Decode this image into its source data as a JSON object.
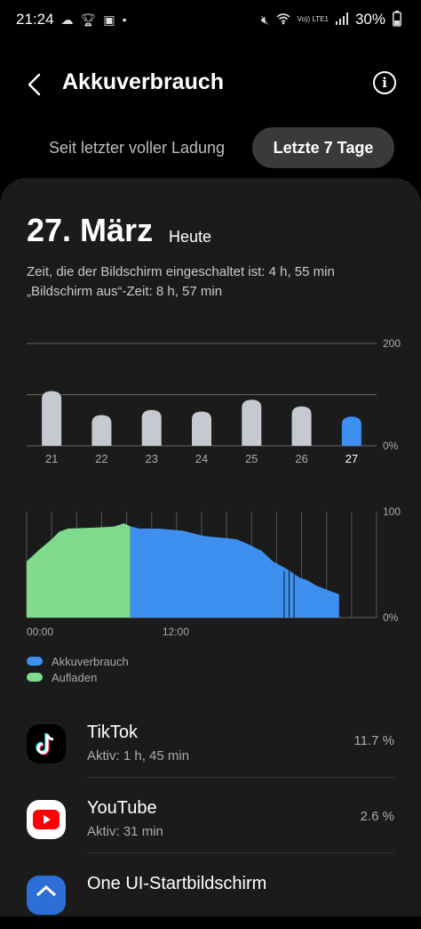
{
  "status_bar": {
    "time": "21:24",
    "battery": "30%",
    "volte": "Vo)) LTE1",
    "left_icons": [
      "cloud-icon",
      "trophy-icon",
      "image-icon",
      "dot-icon"
    ],
    "right_icons": [
      "mute-icon",
      "wifi-icon",
      "signal-icon",
      "battery-icon"
    ]
  },
  "header": {
    "title": "Akkuverbrauch"
  },
  "tabs": {
    "inactive": "Seit letzter voller Ladung",
    "active": "Letzte 7 Tage"
  },
  "summary": {
    "date": "27. März",
    "date_suffix": "Heute",
    "screen_on": "Zeit, die der Bildschirm eingeschaltet ist: 4 h, 55 min",
    "screen_off": "„Bildschirm aus“-Zeit: 8 h, 57 min"
  },
  "chart_data": [
    {
      "type": "bar",
      "categories": [
        "21",
        "22",
        "23",
        "24",
        "25",
        "26",
        "27"
      ],
      "values": [
        107,
        60,
        70,
        67,
        90,
        77,
        57
      ],
      "selected": "27",
      "ylim": [
        0,
        200
      ],
      "ytick_labels": [
        "200",
        "0%"
      ],
      "gridlines": [
        0,
        100,
        200
      ],
      "colors": {
        "bar": "#c7c9d1",
        "selected": "#3d8ff0"
      }
    },
    {
      "type": "area",
      "xtick_labels": [
        "00:00",
        "12:00"
      ],
      "ylim": [
        0,
        100
      ],
      "ytick_labels": [
        "100",
        "0%"
      ],
      "series": [
        {
          "name": "Aufladen",
          "color": "#7fdb8b",
          "points": [
            [
              0.0,
              53
            ],
            [
              1.0,
              64
            ],
            [
              2.0,
              74
            ],
            [
              2.6,
              81
            ],
            [
              3.3,
              84
            ],
            [
              5.5,
              85
            ],
            [
              7.0,
              86
            ],
            [
              7.8,
              89
            ],
            [
              8.3,
              86
            ]
          ]
        },
        {
          "name": "Akkuverbrauch",
          "color": "#3d8ff0",
          "points": [
            [
              8.3,
              86
            ],
            [
              9.0,
              84
            ],
            [
              10.5,
              84
            ],
            [
              12.5,
              82
            ],
            [
              13.5,
              79
            ],
            [
              14.2,
              77
            ],
            [
              15.0,
              76
            ],
            [
              16.0,
              75
            ],
            [
              16.8,
              74
            ],
            [
              17.6,
              70
            ],
            [
              18.8,
              63
            ],
            [
              19.7,
              53
            ],
            [
              20.5,
              48
            ],
            [
              21.2,
              43
            ],
            [
              21.8,
              38
            ],
            [
              22.5,
              35
            ],
            [
              23.2,
              30
            ],
            [
              24.3,
              25
            ],
            [
              25.0,
              22
            ]
          ]
        }
      ],
      "x_range_hours": [
        0,
        28
      ]
    }
  ],
  "legend": {
    "items": [
      {
        "label": "Akkuverbrauch",
        "color": "#3d8ff0"
      },
      {
        "label": "Aufladen",
        "color": "#7fdb8b"
      }
    ]
  },
  "apps": [
    {
      "name": "TikTok",
      "active": "Aktiv: 1 h, 45 min",
      "percent": "11.7 %",
      "icon": "tiktok-icon"
    },
    {
      "name": "YouTube",
      "active": "Aktiv: 31 min",
      "percent": "2.6 %",
      "icon": "youtube-icon"
    },
    {
      "name": "One UI-Startbildschirm",
      "active": "",
      "percent": "",
      "icon": "one-ui-home-icon"
    }
  ]
}
